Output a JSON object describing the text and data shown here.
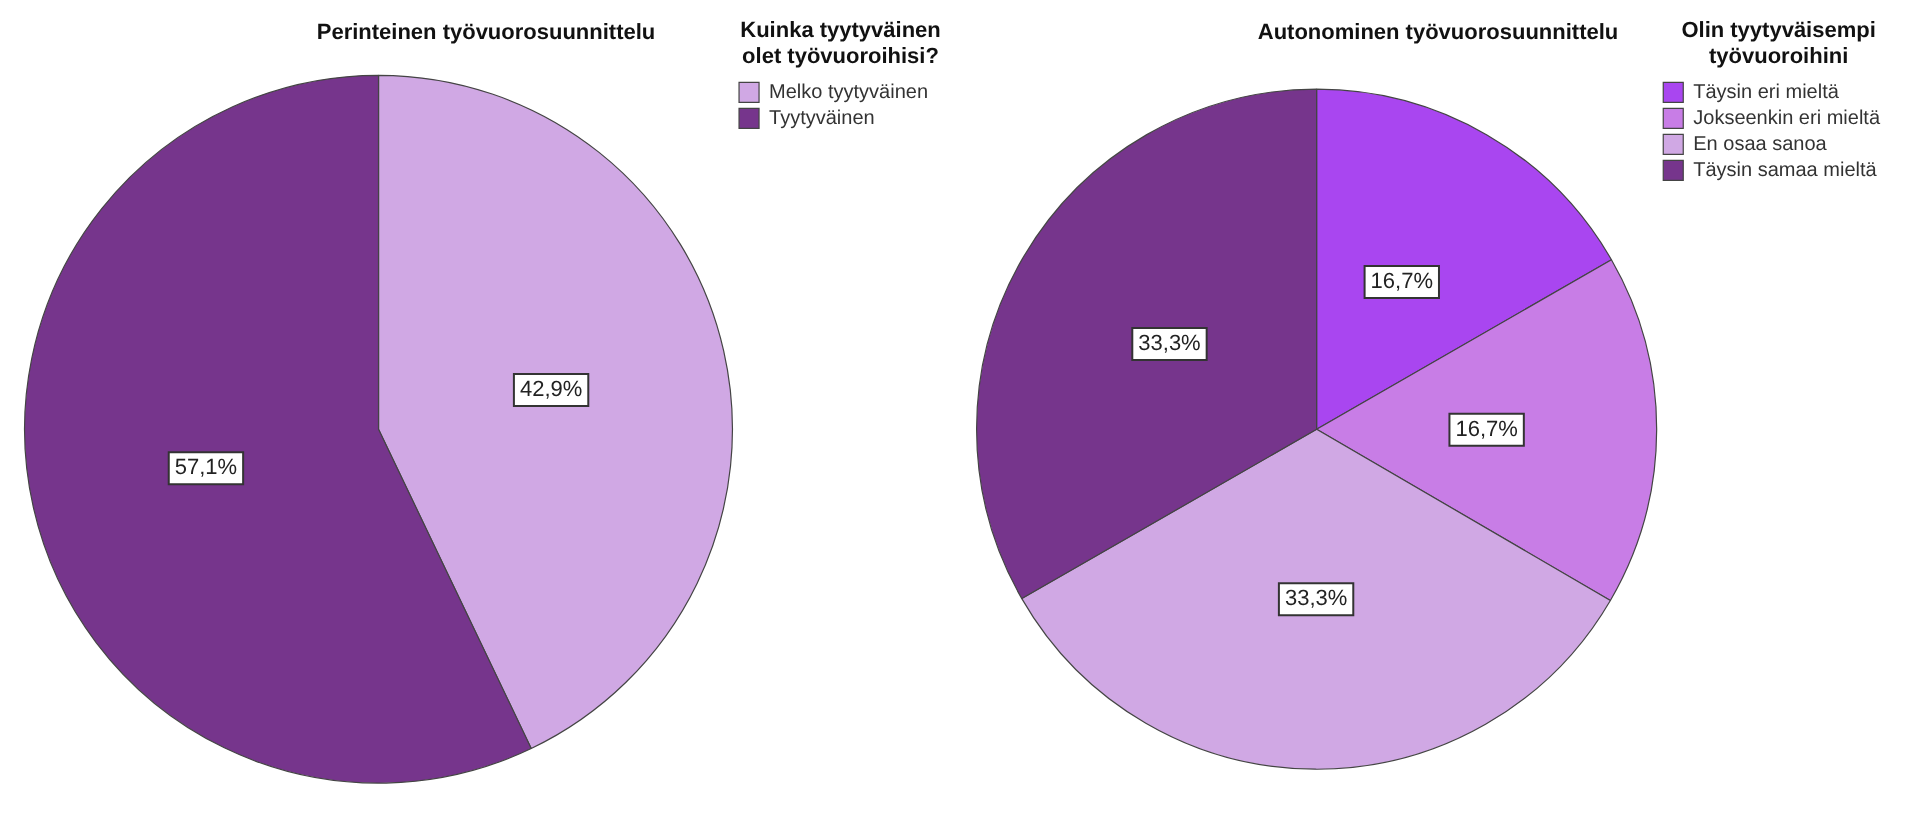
{
  "chart_data": [
    {
      "type": "pie",
      "title": "Perinteinen työvuorosuunnittelu",
      "legend_title": "Kuinka tyytyväinen olet työvuoroihisi?",
      "legend": "top right",
      "categories": [
        "Melko tyytyväinen",
        "Tyytyväinen"
      ],
      "values": [
        42.9,
        57.1
      ],
      "colors": [
        "#d0a8e4",
        "#76358c"
      ],
      "value_labels": [
        "42,9%",
        "57,1%"
      ]
    },
    {
      "type": "pie",
      "title": "Autonominen työvuorosuunnittelu",
      "legend_title": "Olin tyytyväisempi työvuoroihini",
      "legend": "top right",
      "categories": [
        "Täysin eri mieltä",
        "Jokseenkin eri mieltä",
        "En osaa sanoa",
        "Täysin samaa mieltä"
      ],
      "values": [
        16.7,
        16.7,
        33.3,
        33.3
      ],
      "colors": [
        "#a946f0",
        "#c87de6",
        "#d0a8e4",
        "#76358c"
      ],
      "value_labels": [
        "16,7%",
        "16,7%",
        "33,3%",
        "33,3%"
      ]
    }
  ]
}
